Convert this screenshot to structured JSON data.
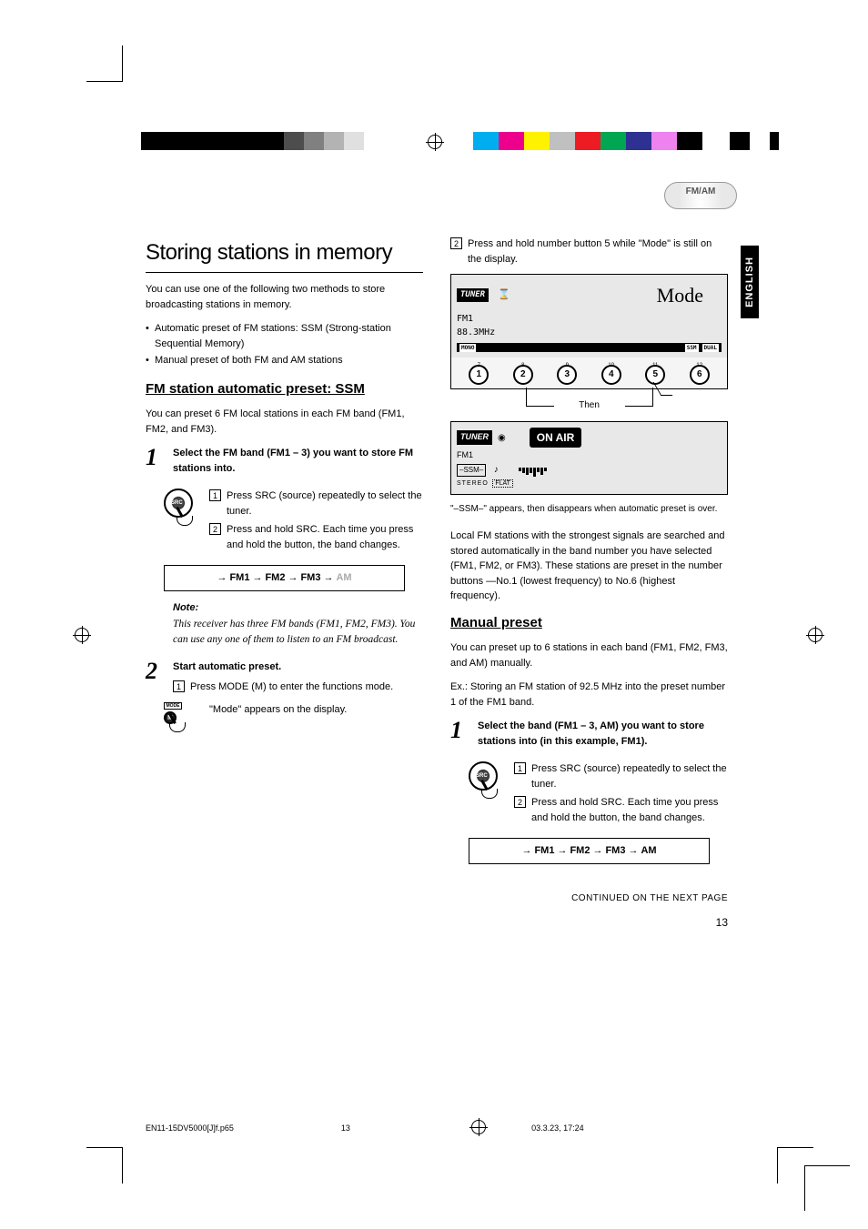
{
  "reg": {
    "gray_shades": [
      "#000000",
      "#4d4d4d",
      "#808080",
      "#b3b3b3",
      "#e0e0e0"
    ],
    "color_bar": [
      "#00aeef",
      "#ec008c",
      "#fff200",
      "#c0c0c0",
      "#ed1c24",
      "#00a651",
      "#2e3192",
      "#ee82ee",
      "#000000"
    ]
  },
  "fmam_label": "FM/AM",
  "lang_tab": "ENGLISH",
  "left": {
    "main_title": "Storing stations in memory",
    "intro": "You can use one of the following two methods to store broadcasting stations in memory.",
    "bullets": [
      "Automatic preset of FM stations: SSM (Strong-station Sequential Memory)",
      "Manual preset of both FM and AM stations"
    ],
    "ssm_title": "FM station automatic preset: SSM",
    "ssm_intro": "You can preset 6 FM local stations in each FM band (FM1, FM2, and FM3).",
    "step1": {
      "num": "1",
      "title": "Select the FM band (FM1 – 3) you want to store FM stations into.",
      "sub1_box": "1",
      "sub1": "Press SRC (source) repeatedly to select the tuner.",
      "sub2_box": "2",
      "sub2": "Press and hold SRC. Each time you press and hold the button, the band changes."
    },
    "bands": {
      "b1": "FM1",
      "b2": "FM2",
      "b3": "FM3",
      "b4": "AM"
    },
    "note_title": "Note:",
    "note_text": "This receiver has three FM bands (FM1, FM2, FM3). You can use any one of them to listen to an FM broadcast.",
    "step2": {
      "num": "2",
      "title": "Start automatic preset.",
      "sub1_box": "1",
      "sub1": "Press MODE (M) to enter the functions mode.",
      "mode_label": "MODE",
      "m_label": "M",
      "sub2": "\"Mode\" appears on the display."
    }
  },
  "right": {
    "top_box": "2",
    "top_text": "Press and hold number button 5 while \"Mode\" is still on the display.",
    "lcd": {
      "tuner": "TUNER",
      "fm": "FM1",
      "freq": "88.3MHz",
      "mode": "Mode",
      "mono": "MONO",
      "ssm": "SSM",
      "dual": "DUAL"
    },
    "preset_tops": [
      "7",
      "8",
      "9",
      "10",
      "11",
      "12"
    ],
    "preset_nums": [
      "1",
      "2",
      "3",
      "4",
      "5",
      "6"
    ],
    "then": "Then",
    "lcd2": {
      "tuner": "TUNER",
      "fm": "FM1",
      "ssm": "–SSM–",
      "stereo": "STEREO",
      "flat": "FLAT",
      "onair": "ON AIR"
    },
    "caption": "\"–SSM–\" appears, then disappears when automatic preset is over.",
    "para": "Local FM stations with the strongest signals are searched and stored automatically in the band number you have selected (FM1, FM2, or FM3). These stations are preset in the number buttons —No.1 (lowest frequency) to No.6 (highest frequency).",
    "manual_title": "Manual preset",
    "manual_intro": "You can preset up to 6 stations in each band (FM1, FM2, FM3, and AM) manually.",
    "example": "Ex.: Storing an FM station of 92.5 MHz into the preset number 1 of the FM1 band.",
    "step1": {
      "num": "1",
      "title": "Select the band (FM1 – 3, AM) you want to store stations into (in this example, FM1).",
      "sub1_box": "1",
      "sub1": "Press SRC (source) repeatedly to select the tuner.",
      "sub2_box": "2",
      "sub2": "Press and hold SRC. Each time you press and hold the button, the band changes."
    },
    "bands": {
      "b1": "FM1",
      "b2": "FM2",
      "b3": "FM3",
      "b4": "AM"
    },
    "continued": "CONTINUED ON THE NEXT PAGE",
    "page_num": "13"
  },
  "footer": {
    "file": "EN11-15DV5000[J]f.p65",
    "page": "13",
    "date": "03.3.23, 17:24"
  }
}
